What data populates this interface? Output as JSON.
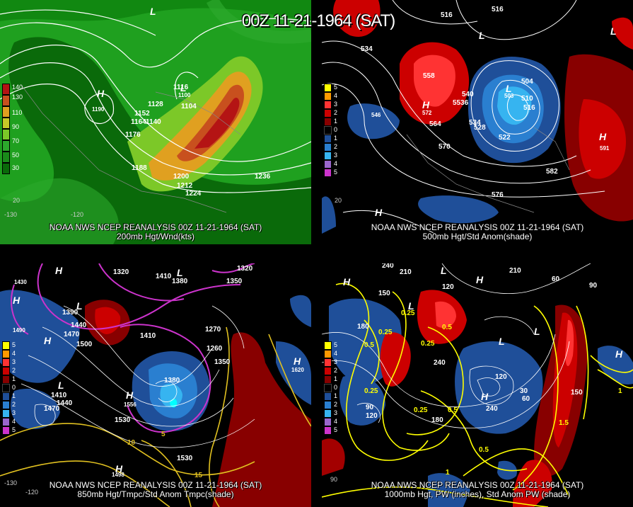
{
  "title": "00Z 11-21-1964 (SAT)",
  "panels": [
    {
      "id": "top-left",
      "line1": "NOAA NWS NCEP REANALYSIS 00Z 11-21-1964 (SAT)",
      "line2": "200mb Hgt/Wnd(kts)",
      "legend": [
        "140",
        "130",
        "110",
        "90",
        "70",
        "50",
        "30"
      ],
      "legend_colors": [
        "#b41414",
        "#c8501e",
        "#e0a020",
        "#c8c828",
        "#7cc828",
        "#2ca82c",
        "#1a8a1a",
        "#0a6a0a"
      ],
      "contour_labels": [
        "1116",
        "1100",
        "1104",
        "1152",
        "1128",
        "1164",
        "1140",
        "1176",
        "1188",
        "1200",
        "1212",
        "1224",
        "1236",
        "1190",
        "1188"
      ],
      "h_labels": [
        "H",
        "L"
      ],
      "lon_labels": [
        "-130",
        "-120",
        "20"
      ]
    },
    {
      "id": "top-right",
      "line1": "NOAA NWS NCEP REANALYSIS 00Z 11-21-1964 (SAT)",
      "line2": "500mb Hgt/Std Anom(shade)",
      "legend": [
        "5",
        "4",
        "3",
        "2",
        "1",
        "0",
        "1",
        "2",
        "3",
        "4",
        "5"
      ],
      "legend_colors": [
        "#ffff00",
        "#ff9900",
        "#ff3333",
        "#cc0000",
        "#880000",
        "#000000",
        "#1f4f99",
        "#2a7fd0",
        "#36b4f0",
        "#9966cc",
        "#cc33cc"
      ],
      "contour_labels": [
        "534",
        "516",
        "516",
        "558",
        "540",
        "5536",
        "564",
        "534",
        "528",
        "504",
        "510",
        "516",
        "522",
        "546",
        "570",
        "576",
        "582",
        "591",
        "503",
        "572"
      ],
      "h_labels": [
        "H",
        "L"
      ],
      "lon_labels": [
        "20"
      ]
    },
    {
      "id": "bottom-left",
      "line1": "NOAA NWS NCEP REANALYSIS 00Z 11-21-1964 (SAT)",
      "line2": "850mb Hgt/Tmpc/Std Anom Tmpc(shade)",
      "legend": [
        "5",
        "4",
        "3",
        "2",
        "1",
        "0",
        "1",
        "2",
        "3",
        "4",
        "5"
      ],
      "legend_colors": [
        "#ffff00",
        "#ff9900",
        "#ff3333",
        "#cc0000",
        "#880000",
        "#000000",
        "#1f4f99",
        "#2a7fd0",
        "#36b4f0",
        "#9966cc",
        "#cc33cc"
      ],
      "contour_labels": [
        "1320",
        "1410",
        "1380",
        "1320",
        "1350",
        "1390",
        "1440",
        "1470",
        "1500",
        "1410",
        "1270",
        "1260",
        "1350",
        "1380",
        "1530",
        "1410",
        "1440",
        "1470",
        "1530",
        "1620",
        "1490",
        "10",
        "5",
        "15",
        "1430",
        "1556",
        "1498"
      ],
      "h_labels": [
        "H",
        "L"
      ],
      "lon_labels": [
        "-130",
        "-120"
      ]
    },
    {
      "id": "bottom-right",
      "line1": "NOAA NWS NCEP REANALYSIS 00Z 11-21-1964 (SAT)",
      "line2": "1000mb Hgt, PW (inches), Std Anom PW (shade)",
      "legend": [
        "5",
        "4",
        "3",
        "2",
        "1",
        "0",
        "1",
        "2",
        "3",
        "4",
        "5"
      ],
      "legend_colors": [
        "#ffff00",
        "#ff9900",
        "#ff3333",
        "#cc0000",
        "#880000",
        "#000000",
        "#1f4f99",
        "#2a7fd0",
        "#36b4f0",
        "#9966cc",
        "#cc33cc"
      ],
      "contour_labels": [
        "240",
        "210",
        "210",
        "60",
        "90",
        "150",
        "120",
        "0.25",
        "0.5",
        "0.25",
        "0.25",
        "180",
        "240",
        "0.5",
        "0.25",
        "30",
        "60",
        "150",
        "120",
        "90",
        "0.25",
        "0.5",
        "180",
        "120",
        "240",
        "0.5",
        "1.5",
        "1",
        "1",
        "90"
      ],
      "h_labels": [
        "H",
        "L"
      ],
      "lon_labels": [
        "90"
      ]
    }
  ]
}
